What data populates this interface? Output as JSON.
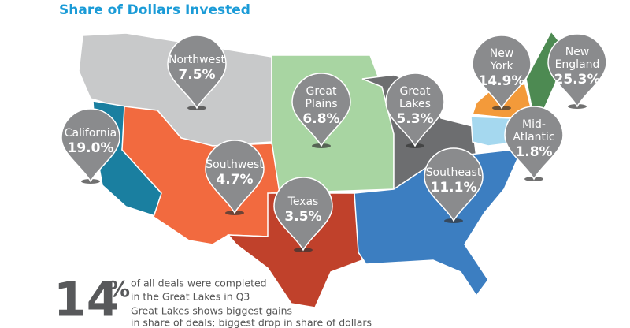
{
  "title": "Share of Dollars Invested",
  "regions": [
    {
      "name_lines": [
        "Northwest"
      ],
      "value": "7.5%"
    },
    {
      "name_lines": [
        "California"
      ],
      "value": "19.0%"
    },
    {
      "name_lines": [
        "Southwest"
      ],
      "value": "4.7%"
    },
    {
      "name_lines": [
        "Texas"
      ],
      "value": "3.5%"
    },
    {
      "name_lines": [
        "Great",
        "Plains"
      ],
      "value": "6.8%"
    },
    {
      "name_lines": [
        "Great",
        "Lakes"
      ],
      "value": "5.3%"
    },
    {
      "name_lines": [
        "Southeast"
      ],
      "value": "11.1%"
    },
    {
      "name_lines": [
        "New",
        "York"
      ],
      "value": "14.9%"
    },
    {
      "name_lines": [
        "New",
        "England"
      ],
      "value": "25.3%"
    },
    {
      "name_lines": [
        "Mid-",
        "Atlantic"
      ],
      "value": "1.8%"
    }
  ],
  "stat": {
    "number": "14",
    "unit": "%",
    "lines": [
      "of all deals were completed",
      "in the Great Lakes in Q3"
    ]
  },
  "note_lines": [
    "Great Lakes shows biggest gains",
    "in share of deals; biggest drop in share of dollars"
  ]
}
